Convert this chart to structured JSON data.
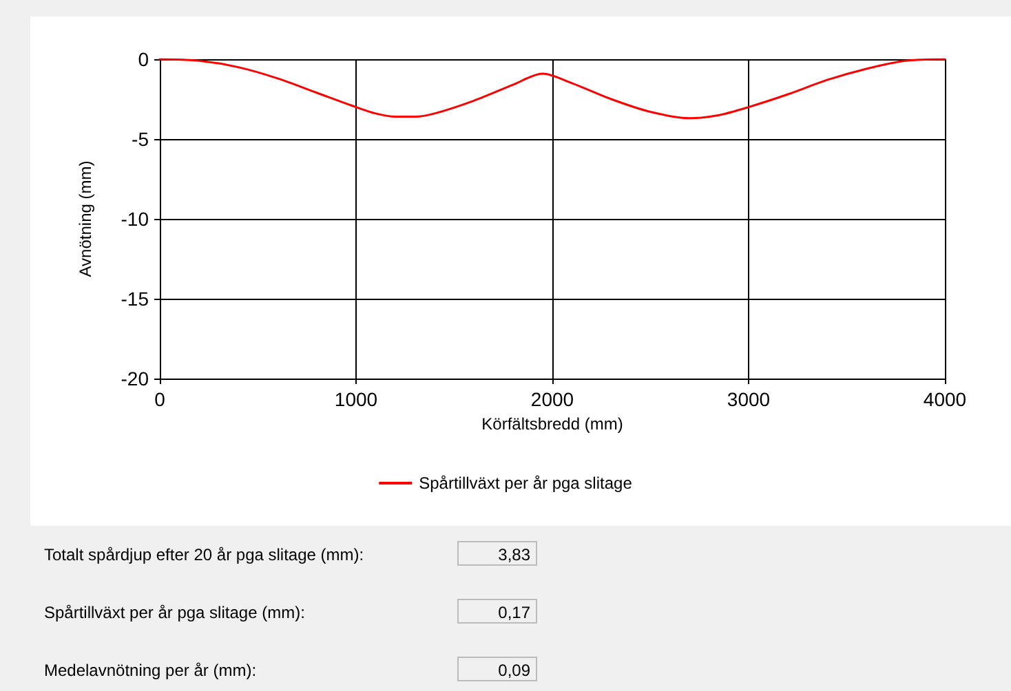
{
  "chart_data": {
    "type": "line",
    "xlabel": "Körfältsbredd (mm)",
    "ylabel": "Avnötning (mm)",
    "x": [
      0,
      200,
      400,
      600,
      800,
      1000,
      1100,
      1200,
      1300,
      1400,
      1600,
      1800,
      1950,
      2100,
      2300,
      2500,
      2700,
      2850,
      3000,
      3200,
      3400,
      3600,
      3800,
      4000
    ],
    "series": [
      {
        "name": "Spårtillväxt per år pga slitage",
        "color": "#ff0000",
        "values": [
          0,
          -0.1,
          -0.5,
          -1.2,
          -2.1,
          -3.0,
          -3.4,
          -3.6,
          -3.6,
          -3.4,
          -2.6,
          -1.6,
          -0.9,
          -1.5,
          -2.5,
          -3.3,
          -3.7,
          -3.5,
          -3.0,
          -2.2,
          -1.3,
          -0.6,
          -0.1,
          0
        ]
      }
    ],
    "xlim": [
      0,
      4000
    ],
    "xticks": [
      0,
      1000,
      2000,
      3000,
      4000
    ],
    "ylim": [
      -20,
      0
    ],
    "yticks": [
      -20,
      -15,
      -10,
      -5,
      0
    ],
    "grid": true,
    "legend": "bottom",
    "marker": "none",
    "line_style": "solid",
    "annotations": [
      "Totalt spårdjup efter 20 år pga slitage (mm):",
      "3,83",
      "Spårtillväxt per år pga slitage (mm):",
      "0,17",
      "Medelavnötning per år (mm):",
      "0,09"
    ]
  }
}
